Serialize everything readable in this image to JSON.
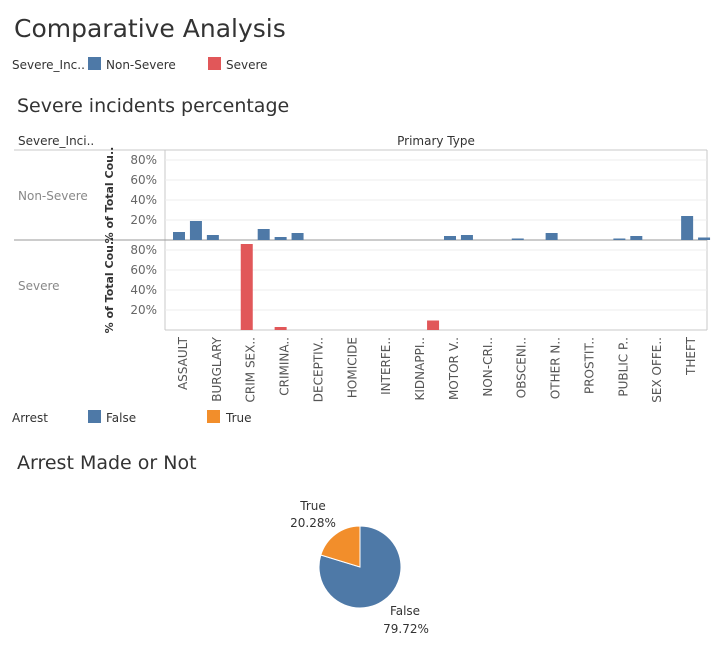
{
  "dashboard": {
    "title": "Comparative Analysis"
  },
  "severity_legend": {
    "label": "Severe_Inc..",
    "items": [
      {
        "label": "Non-Severe",
        "color": "#4e79a7"
      },
      {
        "label": "Severe",
        "color": "#e15759"
      }
    ]
  },
  "arrest_legend": {
    "label": "Arrest",
    "items": [
      {
        "label": "False",
        "color": "#4e79a7"
      },
      {
        "label": "True",
        "color": "#f28e2b"
      }
    ]
  },
  "chart_data": [
    {
      "type": "bar",
      "title": "Severe incidents percentage",
      "row_header": "Severe_Inci..",
      "column_header": "Primary Type",
      "ylabel": "% of Total Cou..",
      "yticks": [
        "20%",
        "40%",
        "60%",
        "80%"
      ],
      "ylim": [
        0,
        90
      ],
      "categories": [
        "ASSAULT",
        "BURGLARY",
        "CRIM SEX..",
        "CRIMINA..",
        "DECEPTIV..",
        "HOMICIDE",
        "INTERFE..",
        "KIDNAPPI..",
        "MOTOR V..",
        "NON-CRI..",
        "OBSCENI..",
        "OTHER N..",
        "PROSTIT..",
        "PUBLIC P..",
        "SEX OFFE..",
        "THEFT"
      ],
      "rows": [
        {
          "name": "Non-Severe",
          "color": "#4e79a7",
          "values": [
            [
              8,
              19
            ],
            [
              5,
              null
            ],
            [
              null,
              11
            ],
            [
              3,
              7
            ],
            [
              null,
              null
            ],
            [
              null,
              null
            ],
            [
              null,
              null
            ],
            [
              null,
              null
            ],
            [
              4,
              5
            ],
            [
              null,
              null
            ],
            [
              1.5,
              null
            ],
            [
              7,
              null
            ],
            [
              null,
              null
            ],
            [
              1.5,
              4
            ],
            [
              null,
              null
            ],
            [
              24,
              2.5
            ]
          ]
        },
        {
          "name": "Severe",
          "color": "#e15759",
          "values": [
            [
              null,
              null
            ],
            [
              null,
              null
            ],
            [
              86,
              null
            ],
            [
              3,
              null
            ],
            [
              null,
              null
            ],
            [
              null,
              null
            ],
            [
              null,
              null
            ],
            [
              null,
              9.5
            ],
            [
              null,
              null
            ],
            [
              null,
              null
            ],
            [
              null,
              null
            ],
            [
              null,
              null
            ],
            [
              null,
              null
            ],
            [
              null,
              null
            ],
            [
              null,
              null
            ],
            [
              null,
              null
            ]
          ]
        }
      ]
    },
    {
      "type": "pie",
      "title": "Arrest Made or Not",
      "slices": [
        {
          "label": "False",
          "value": 79.72,
          "display": "79.72%",
          "color": "#4e79a7"
        },
        {
          "label": "True",
          "value": 20.28,
          "display": "20.28%",
          "color": "#f28e2b"
        }
      ]
    }
  ]
}
